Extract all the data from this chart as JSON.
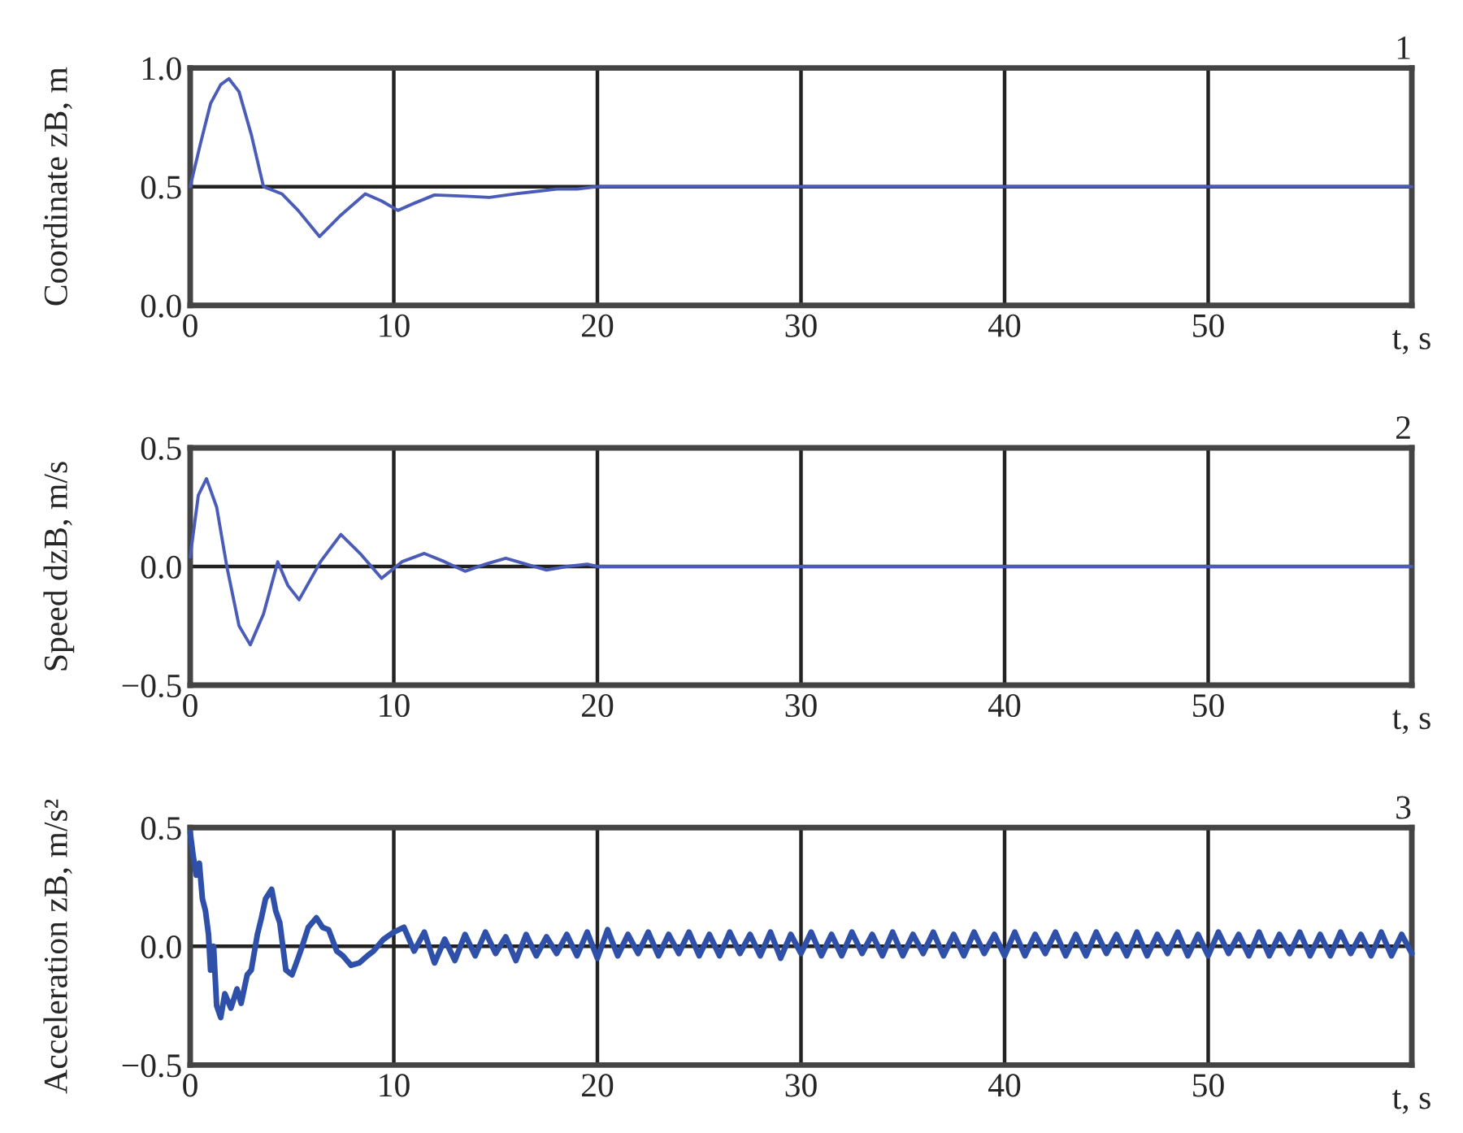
{
  "chart_data": [
    {
      "type": "line",
      "title": "1",
      "xlabel": "t, s",
      "ylabel": "Coordinate zB, m",
      "xlim": [
        0,
        60
      ],
      "xticks": [
        0,
        10,
        20,
        30,
        40,
        50
      ],
      "ylim": [
        0,
        1
      ],
      "yticks": [
        {
          "value": 0,
          "label": "0.0"
        },
        {
          "value": 0.5,
          "label": "0.5"
        },
        {
          "value": 1,
          "label": "1.0"
        }
      ],
      "grid": true,
      "series": [
        {
          "color": "#4a5cb8",
          "x": [
            0,
            0.5,
            1,
            1.5,
            1.9,
            2.4,
            3,
            3.6,
            4.5,
            5.3,
            6.35,
            7.4,
            8.6,
            9.4,
            10.2,
            11,
            12,
            13.5,
            14.7,
            16,
            17,
            18,
            19,
            20,
            25,
            30,
            40,
            50,
            60
          ],
          "values": [
            0.5,
            0.68,
            0.85,
            0.93,
            0.955,
            0.9,
            0.72,
            0.5,
            0.47,
            0.4,
            0.29,
            0.38,
            0.47,
            0.44,
            0.4,
            0.43,
            0.465,
            0.46,
            0.455,
            0.47,
            0.48,
            0.49,
            0.49,
            0.5,
            0.5,
            0.5,
            0.5,
            0.5,
            0.5
          ]
        }
      ]
    },
    {
      "type": "line",
      "title": "2",
      "xlabel": "t, s",
      "ylabel": "Speed dzB, m/s",
      "xlim": [
        0,
        60
      ],
      "xticks": [
        0,
        10,
        20,
        30,
        40,
        50
      ],
      "ylim": [
        -0.5,
        0.5
      ],
      "yticks": [
        {
          "value": -0.5,
          "label": "−0.5"
        },
        {
          "value": 0,
          "label": "0.0"
        },
        {
          "value": 0.5,
          "label": "0.5"
        }
      ],
      "grid": true,
      "series": [
        {
          "color": "#4a5cb8",
          "x": [
            0,
            0.4,
            0.8,
            1.3,
            1.8,
            2.4,
            2.95,
            3.6,
            4.3,
            4.8,
            5.35,
            6.4,
            7.4,
            8.4,
            9.4,
            10.4,
            11.5,
            12.5,
            13.5,
            14.5,
            15.5,
            16.5,
            17.5,
            18.5,
            19.5,
            20,
            30,
            40,
            50,
            60
          ],
          "values": [
            0.04,
            0.3,
            0.37,
            0.25,
            0.0,
            -0.25,
            -0.33,
            -0.2,
            0.02,
            -0.08,
            -0.14,
            0.02,
            0.135,
            0.05,
            -0.05,
            0.02,
            0.055,
            0.02,
            -0.02,
            0.01,
            0.035,
            0.01,
            -0.015,
            0.0,
            0.01,
            0.0,
            0.0,
            0.0,
            0.0,
            0.0
          ]
        }
      ]
    },
    {
      "type": "line",
      "title": "3",
      "xlabel": "t, s",
      "ylabel": "Acceleration zB, m/s²",
      "xlim": [
        0,
        60
      ],
      "xticks": [
        0,
        10,
        20,
        30,
        40,
        50
      ],
      "ylim": [
        -0.5,
        0.5
      ],
      "yticks": [
        {
          "value": -0.5,
          "label": "−0.5"
        },
        {
          "value": 0,
          "label": "0.0"
        },
        {
          "value": 0.5,
          "label": "0.5"
        }
      ],
      "grid": true,
      "series": [
        {
          "color": "#2f50a8",
          "x": [
            0,
            0.15,
            0.3,
            0.45,
            0.6,
            0.75,
            0.9,
            1.0,
            1.15,
            1.3,
            1.5,
            1.7,
            2.0,
            2.3,
            2.5,
            2.8,
            3.0,
            3.3,
            3.5,
            3.7,
            4.0,
            4.2,
            4.4,
            4.7,
            5.0,
            5.3,
            5.5,
            5.8,
            6.2,
            6.5,
            6.8,
            7.2,
            7.5,
            7.9,
            8.3,
            8.7,
            9.0,
            9.5,
            10,
            10.5,
            11,
            11.5,
            12,
            12.5,
            13,
            13.5,
            14,
            14.5,
            15,
            15.5,
            16,
            16.5,
            17,
            17.5,
            18,
            18.5,
            19,
            19.5,
            20,
            20.5,
            21,
            21.5,
            22,
            22.5,
            23,
            23.5,
            24,
            24.5,
            25,
            25.5,
            26,
            26.5,
            27,
            27.5,
            28,
            28.5,
            29,
            29.5,
            30,
            30.5,
            31,
            31.5,
            32,
            32.5,
            33,
            33.5,
            34,
            34.5,
            35,
            35.5,
            36,
            36.5,
            37,
            37.5,
            38,
            38.5,
            39,
            39.5,
            40,
            40.5,
            41,
            41.5,
            42,
            42.5,
            43,
            43.5,
            44,
            44.5,
            45,
            45.5,
            46,
            46.5,
            47,
            47.5,
            48,
            48.5,
            49,
            49.5,
            50,
            50.5,
            51,
            51.5,
            52,
            52.5,
            53,
            53.5,
            54,
            54.5,
            55,
            55.5,
            56,
            56.5,
            57,
            57.5,
            58,
            58.5,
            59,
            59.5,
            60
          ],
          "values": [
            0.48,
            0.38,
            0.3,
            0.35,
            0.2,
            0.15,
            0.05,
            -0.1,
            0.0,
            -0.25,
            -0.3,
            -0.2,
            -0.26,
            -0.18,
            -0.24,
            -0.12,
            -0.1,
            0.05,
            0.12,
            0.2,
            0.24,
            0.15,
            0.1,
            -0.1,
            -0.12,
            -0.05,
            0.0,
            0.08,
            0.12,
            0.08,
            0.07,
            -0.02,
            -0.04,
            -0.08,
            -0.07,
            -0.04,
            -0.02,
            0.03,
            0.06,
            0.08,
            -0.02,
            0.06,
            -0.07,
            0.03,
            -0.06,
            0.05,
            -0.04,
            0.06,
            -0.03,
            0.04,
            -0.06,
            0.05,
            -0.04,
            0.04,
            -0.03,
            0.05,
            -0.04,
            0.06,
            -0.05,
            0.07,
            -0.04,
            0.05,
            -0.03,
            0.06,
            -0.04,
            0.05,
            -0.03,
            0.06,
            -0.04,
            0.05,
            -0.04,
            0.06,
            -0.03,
            0.05,
            -0.04,
            0.06,
            -0.05,
            0.05,
            -0.03,
            0.06,
            -0.04,
            0.05,
            -0.04,
            0.06,
            -0.03,
            0.05,
            -0.04,
            0.06,
            -0.04,
            0.05,
            -0.03,
            0.06,
            -0.04,
            0.05,
            -0.04,
            0.06,
            -0.03,
            0.05,
            -0.04,
            0.06,
            -0.04,
            0.05,
            -0.03,
            0.06,
            -0.04,
            0.05,
            -0.04,
            0.06,
            -0.03,
            0.05,
            -0.04,
            0.06,
            -0.04,
            0.05,
            -0.03,
            0.06,
            -0.04,
            0.05,
            -0.04,
            0.06,
            -0.03,
            0.05,
            -0.04,
            0.06,
            -0.04,
            0.05,
            -0.03,
            0.06,
            -0.04,
            0.05,
            -0.04,
            0.06,
            -0.03,
            0.05,
            -0.04,
            0.06,
            -0.04,
            0.05,
            -0.03
          ]
        }
      ]
    }
  ]
}
